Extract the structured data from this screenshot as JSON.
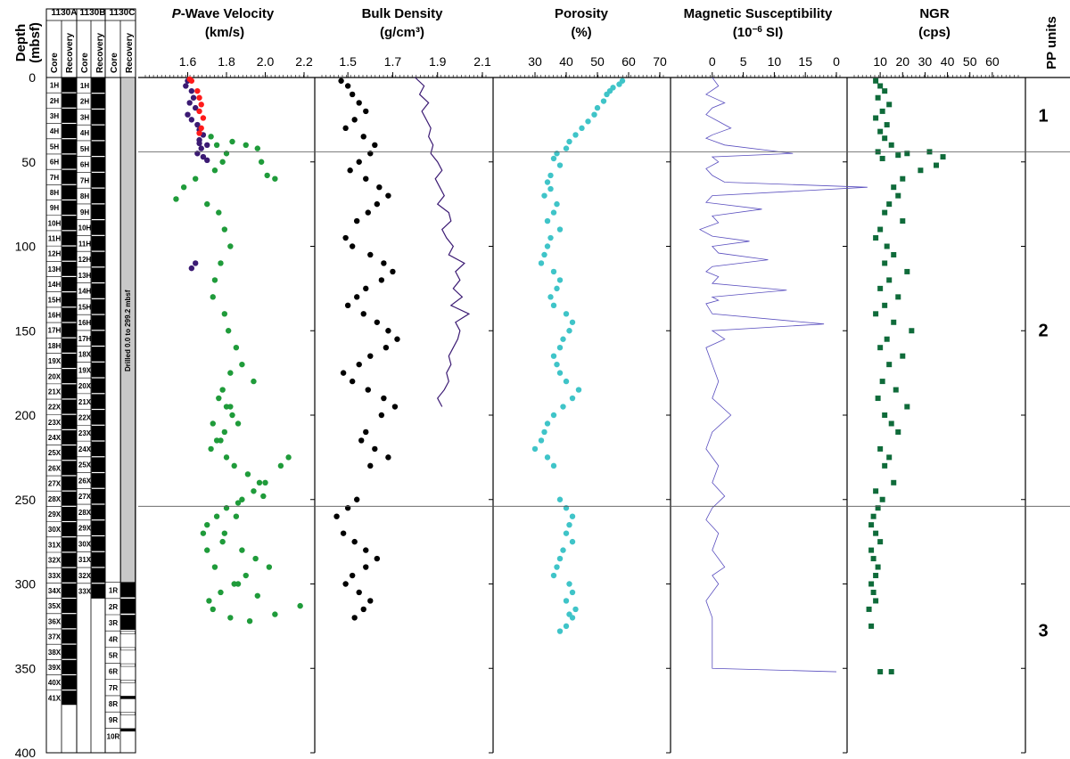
{
  "chart_data": [
    {
      "type": "table",
      "yaxis": {
        "label_line1": "Depth",
        "label_line2": "(mbsf)",
        "ylim": [
          0,
          400
        ],
        "ticks": [
          0,
          50,
          100,
          150,
          200,
          250,
          300,
          350,
          400
        ]
      },
      "columns": [
        {
          "hole": "1130A",
          "sub": [
            "Core",
            "Recovery"
          ]
        },
        {
          "hole": "1130B",
          "sub": [
            "Core",
            "Recovery"
          ]
        },
        {
          "hole": "1130C",
          "sub": [
            "Core",
            "Recovery"
          ]
        }
      ],
      "cores_1130A": [
        "1H",
        "2H",
        "3H",
        "4H",
        "5H",
        "6H",
        "7H",
        "8H",
        "9H",
        "10H",
        "11H",
        "12H",
        "13H",
        "14H",
        "15H",
        "16H",
        "17H",
        "18H",
        "19X",
        "20X",
        "21X",
        "22X",
        "23X",
        "24X",
        "25X",
        "26X",
        "27X",
        "28X",
        "29X",
        "30X",
        "31X",
        "32X",
        "33X",
        "34X",
        "35X",
        "36X",
        "37X",
        "38X",
        "39X",
        "40X",
        "41X"
      ],
      "cores_1130B": [
        "1H",
        "2H",
        "3H",
        "4H",
        "5H",
        "6H",
        "7H",
        "8H",
        "9H",
        "10H",
        "11H",
        "12H",
        "13H",
        "14H",
        "15H",
        "16H",
        "17H",
        "18X",
        "19X",
        "20X",
        "21X",
        "22X",
        "23X",
        "24X",
        "25X",
        "26X",
        "27X",
        "28X",
        "29X",
        "30X",
        "31X",
        "32X",
        "33X"
      ],
      "cores_1130C": [
        "1R",
        "2R",
        "3R",
        "4R",
        "5R",
        "6R",
        "7R",
        "8R",
        "9R",
        "10R"
      ],
      "drilled_note": "Drilled 0.0 to 299.2 mbsf"
    },
    {
      "type": "scatter",
      "title_italic": "P",
      "title": "-Wave Velocity",
      "unit": "(km/s)",
      "xlim": [
        1.4,
        2.2
      ],
      "xticks": [
        "1.6",
        "1.8",
        "2.0",
        "2.2"
      ],
      "series": [
        {
          "color": "#3b1a73",
          "x": [
            1.6,
            1.59,
            1.62,
            1.63,
            1.61,
            1.64,
            1.6,
            1.62,
            1.65,
            1.66,
            1.68,
            1.66,
            1.7,
            1.67,
            1.65,
            1.68,
            1.7,
            1.66,
            1.64,
            1.62
          ],
          "y": [
            2,
            5,
            8,
            12,
            15,
            18,
            22,
            25,
            28,
            31,
            34,
            37,
            40,
            42,
            45,
            47,
            49,
            39,
            110,
            113
          ]
        },
        {
          "color": "#ff1a1a",
          "x": [
            1.61,
            1.62,
            1.65,
            1.66,
            1.67,
            1.66,
            1.68,
            1.67,
            1.66
          ],
          "y": [
            1,
            2,
            8,
            12,
            16,
            20,
            24,
            30,
            33
          ]
        },
        {
          "color": "#1f9b3a",
          "x": [
            1.72,
            1.75,
            1.8,
            1.78,
            1.74,
            1.83,
            1.9,
            1.96,
            1.98,
            2.01,
            2.05,
            1.64,
            1.58,
            1.54,
            1.7,
            1.76,
            1.79,
            1.82,
            1.77,
            1.74,
            1.73,
            1.79,
            1.81,
            1.85,
            1.88,
            1.94,
            1.82,
            1.78,
            1.76,
            1.8,
            1.83,
            1.86,
            1.79,
            1.75,
            1.72,
            1.8,
            1.84,
            1.91,
            1.97,
            1.99,
            1.86,
            1.8,
            1.75,
            1.7,
            1.68,
            1.78,
            1.88,
            1.95,
            2.02,
            1.9,
            1.84,
            1.77,
            1.71,
            1.73,
            1.82,
            1.92,
            2.05,
            2.18,
            1.96,
            1.86,
            1.74,
            1.7,
            1.79,
            1.85,
            1.88,
            1.94,
            2.0,
            2.08,
            2.12,
            1.77,
            1.73,
            1.82
          ],
          "y": [
            35,
            40,
            45,
            50,
            55,
            38,
            40,
            42,
            50,
            58,
            60,
            60,
            65,
            72,
            75,
            80,
            90,
            100,
            110,
            120,
            130,
            140,
            150,
            160,
            170,
            180,
            175,
            185,
            190,
            195,
            200,
            205,
            210,
            215,
            220,
            225,
            230,
            235,
            240,
            248,
            252,
            255,
            260,
            265,
            270,
            275,
            280,
            285,
            290,
            295,
            300,
            305,
            310,
            315,
            320,
            322,
            318,
            313,
            307,
            300,
            290,
            280,
            270,
            260,
            250,
            245,
            240,
            230,
            225,
            215,
            205,
            195
          ]
        }
      ]
    },
    {
      "type": "scatter",
      "title": "Bulk Density",
      "unit": "(g/cm³)",
      "xlim": [
        1.4,
        2.1
      ],
      "xticks": [
        "1.5",
        "1.7",
        "1.9",
        "2.1"
      ],
      "series": [
        {
          "color": "#000000",
          "x": [
            1.47,
            1.5,
            1.52,
            1.55,
            1.58,
            1.53,
            1.49,
            1.57,
            1.62,
            1.6,
            1.55,
            1.51,
            1.58,
            1.64,
            1.68,
            1.63,
            1.59,
            1.54,
            1.49,
            1.52,
            1.6,
            1.66,
            1.7,
            1.65,
            1.58,
            1.54,
            1.5,
            1.57,
            1.63,
            1.68,
            1.72,
            1.67,
            1.6,
            1.55,
            1.48,
            1.52,
            1.59,
            1.66,
            1.71,
            1.65,
            1.58,
            1.56,
            1.62,
            1.68,
            1.6,
            1.54,
            1.5,
            1.45,
            1.48,
            1.53,
            1.58,
            1.63,
            1.58,
            1.52,
            1.49,
            1.55,
            1.6,
            1.57,
            1.53
          ],
          "y": [
            2,
            5,
            10,
            15,
            20,
            25,
            30,
            35,
            40,
            45,
            50,
            55,
            60,
            65,
            70,
            75,
            80,
            85,
            95,
            100,
            105,
            110,
            115,
            120,
            125,
            130,
            135,
            140,
            145,
            150,
            155,
            160,
            165,
            170,
            175,
            180,
            185,
            190,
            195,
            200,
            210,
            215,
            220,
            225,
            230,
            250,
            255,
            260,
            270,
            275,
            280,
            285,
            290,
            295,
            300,
            305,
            310,
            315,
            320
          ]
        },
        {
          "color": "#3b1a73",
          "line": true,
          "x": [
            1.8,
            1.84,
            1.82,
            1.86,
            1.83,
            1.85,
            1.87,
            1.86,
            1.88,
            1.87,
            1.9,
            1.92,
            1.89,
            1.91,
            1.93,
            1.9,
            1.95,
            1.96,
            1.92,
            1.94,
            1.97,
            1.95,
            2.02,
            1.98,
            2.0,
            1.97,
            2.01,
            1.96,
            2.04,
            1.98,
            2.0,
            1.99,
            1.97,
            1.95,
            1.96,
            1.94,
            1.95,
            1.93,
            1.9,
            1.92
          ],
          "y": [
            0,
            5,
            10,
            15,
            20,
            25,
            30,
            35,
            40,
            45,
            50,
            55,
            60,
            65,
            70,
            75,
            80,
            85,
            90,
            95,
            100,
            105,
            110,
            115,
            120,
            125,
            130,
            135,
            140,
            145,
            150,
            155,
            160,
            165,
            170,
            175,
            180,
            185,
            190,
            195
          ]
        }
      ]
    },
    {
      "type": "scatter",
      "title": "Porosity",
      "unit": "(%)",
      "xlim": [
        20,
        70
      ],
      "xticks": [
        "30",
        "40",
        "50",
        "60",
        "70"
      ],
      "series": [
        {
          "color": "#3fc4c8",
          "x": [
            58,
            57,
            55,
            54,
            53,
            52,
            50,
            49,
            47,
            45,
            43,
            41,
            40,
            37,
            36,
            38,
            35,
            34,
            35,
            33,
            37,
            36,
            34,
            38,
            35,
            34,
            33,
            32,
            36,
            38,
            37,
            35,
            36,
            40,
            42,
            41,
            39,
            38,
            36,
            37,
            38,
            40,
            44,
            42,
            39,
            36,
            34,
            33,
            32,
            30,
            34,
            36,
            38,
            40,
            42,
            41,
            40,
            42,
            39,
            38,
            37,
            36,
            41,
            42,
            40,
            43,
            42,
            40,
            38,
            41
          ],
          "y": [
            2,
            4,
            6,
            8,
            10,
            14,
            18,
            22,
            26,
            30,
            34,
            38,
            42,
            45,
            48,
            52,
            58,
            62,
            66,
            70,
            75,
            80,
            85,
            90,
            95,
            100,
            105,
            110,
            115,
            120,
            125,
            130,
            135,
            140,
            145,
            150,
            155,
            160,
            165,
            170,
            175,
            180,
            185,
            190,
            195,
            200,
            205,
            210,
            215,
            220,
            225,
            230,
            250,
            255,
            260,
            265,
            270,
            275,
            280,
            285,
            290,
            295,
            300,
            305,
            310,
            315,
            320,
            325,
            328,
            318
          ]
        }
      ]
    },
    {
      "type": "line",
      "title": "Magnetic Susceptibility",
      "unit_pre": "(10",
      "unit_sup": "−6",
      "unit_post": " SI)",
      "xlim": [
        -5,
        20
      ],
      "xticks": [
        "0",
        "5",
        "10",
        "15",
        "0"
      ],
      "series": [
        {
          "color": "#5a4fbf",
          "x": [
            0,
            1,
            -1,
            2,
            0,
            -1,
            1,
            3,
            0,
            -1,
            2,
            13,
            0,
            1,
            -1,
            0,
            2,
            25,
            0,
            -1,
            8,
            0,
            1,
            -2,
            0,
            6,
            0,
            1,
            9,
            0,
            -1,
            1,
            0,
            12,
            0,
            1,
            -1,
            0,
            18,
            0,
            2,
            -1,
            0,
            1,
            0,
            3,
            0,
            -1,
            1,
            0,
            2,
            0,
            -1,
            1,
            0,
            2,
            0,
            1,
            -1,
            0,
            0,
            0,
            0,
            20
          ],
          "y": [
            0,
            5,
            10,
            15,
            18,
            22,
            26,
            30,
            34,
            36,
            40,
            45,
            47,
            50,
            54,
            58,
            62,
            65,
            70,
            74,
            78,
            82,
            86,
            90,
            94,
            97,
            100,
            104,
            108,
            112,
            115,
            118,
            122,
            126,
            130,
            132,
            134,
            140,
            146,
            150,
            155,
            160,
            170,
            180,
            190,
            200,
            210,
            220,
            230,
            240,
            248,
            255,
            262,
            270,
            280,
            290,
            295,
            300,
            310,
            320,
            330,
            340,
            350,
            352
          ]
        }
      ]
    },
    {
      "type": "scatter",
      "title": "NGR",
      "unit": "(cps)",
      "xlim": [
        0,
        70
      ],
      "xticks": [
        "10",
        "20",
        "30",
        "40",
        "50",
        "60"
      ],
      "series": [
        {
          "color": "#0f6b3a",
          "x": [
            8,
            10,
            12,
            9,
            14,
            11,
            8,
            13,
            10,
            12,
            15,
            9,
            11,
            18,
            22,
            32,
            38,
            35,
            28,
            20,
            16,
            18,
            14,
            12,
            20,
            10,
            8,
            13,
            16,
            12,
            22,
            14,
            10,
            18,
            12,
            8,
            16,
            24,
            13,
            10,
            20,
            14,
            11,
            17,
            9,
            22,
            12,
            15,
            18,
            10,
            14,
            12,
            16,
            8,
            11,
            9,
            7,
            6,
            8,
            10,
            6,
            7,
            9,
            8,
            6,
            7,
            8,
            5,
            6,
            10,
            15
          ],
          "y": [
            2,
            5,
            8,
            12,
            16,
            20,
            24,
            28,
            32,
            36,
            40,
            44,
            48,
            46,
            45,
            44,
            47,
            52,
            55,
            60,
            65,
            70,
            75,
            80,
            85,
            90,
            95,
            100,
            105,
            110,
            115,
            120,
            125,
            130,
            135,
            140,
            145,
            150,
            155,
            160,
            165,
            170,
            180,
            185,
            190,
            195,
            200,
            205,
            210,
            220,
            225,
            230,
            240,
            245,
            250,
            255,
            260,
            265,
            270,
            275,
            280,
            285,
            290,
            295,
            300,
            305,
            310,
            315,
            325,
            352,
            352
          ]
        }
      ]
    },
    {
      "type": "table",
      "title": "PP units",
      "units": [
        {
          "label": "1",
          "top": 0,
          "bottom": 44
        },
        {
          "label": "2",
          "top": 44,
          "bottom": 254
        },
        {
          "label": "3",
          "top": 254,
          "bottom": 400
        }
      ]
    }
  ]
}
